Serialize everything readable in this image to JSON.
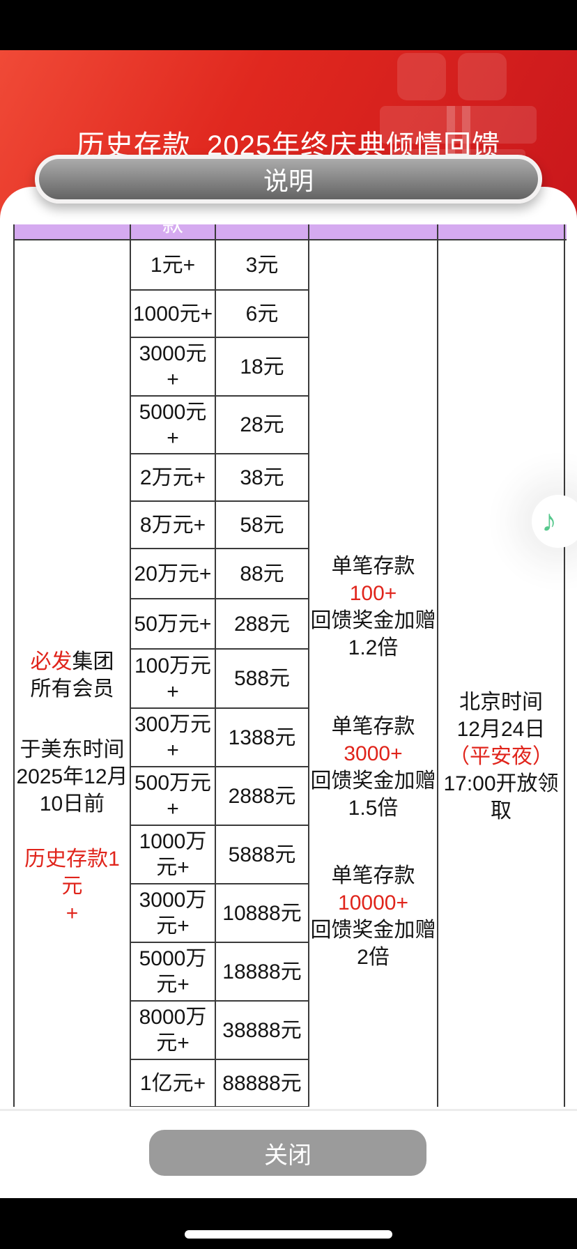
{
  "header": {
    "title": "历史存款_2025年终庆典倾情回馈",
    "explain_button": "说明"
  },
  "table": {
    "header_partial_label": "款",
    "eligibility": {
      "brand_red": "必发",
      "brand_black": "集团",
      "members_line": "所有会员",
      "time_line1": "于美东时间",
      "time_line2": "2025年12月",
      "time_line3": "10日前",
      "deposit_req_line1": "历史存款1元",
      "deposit_req_line2": "+"
    },
    "tiers": [
      {
        "deposit": "1元+",
        "bonus": "3元"
      },
      {
        "deposit": "1000元+",
        "bonus": "6元"
      },
      {
        "deposit": "3000元\n+",
        "bonus": "18元"
      },
      {
        "deposit": "5000元\n+",
        "bonus": "28元"
      },
      {
        "deposit": "2万元+",
        "bonus": "38元"
      },
      {
        "deposit": "8万元+",
        "bonus": "58元"
      },
      {
        "deposit": "20万元+",
        "bonus": "88元"
      },
      {
        "deposit": "50万元+",
        "bonus": "288元"
      },
      {
        "deposit": "100万元\n+",
        "bonus": "588元"
      },
      {
        "deposit": "300万元\n+",
        "bonus": "1388元"
      },
      {
        "deposit": "500万元\n+",
        "bonus": "2888元"
      },
      {
        "deposit": "1000万\n元+",
        "bonus": "5888元"
      },
      {
        "deposit": "3000万\n元+",
        "bonus": "10888元"
      },
      {
        "deposit": "5000万\n元+",
        "bonus": "18888元"
      },
      {
        "deposit": "8000万\n元+",
        "bonus": "38888元"
      },
      {
        "deposit": "1亿元+",
        "bonus": "88888元"
      }
    ],
    "multipliers": [
      {
        "line1": "单笔存款",
        "amount": "100+",
        "line3": "回馈奖金加赠",
        "factor": "1.2倍"
      },
      {
        "line1": "单笔存款",
        "amount": "3000+",
        "line3": "回馈奖金加赠",
        "factor": "1.5倍"
      },
      {
        "line1": "单笔存款",
        "amount": "10000+",
        "line3": "回馈奖金加赠",
        "factor": "2倍"
      }
    ],
    "claim_time": {
      "line1": "北京时间",
      "line2": "12月24日",
      "line3": "（平安夜）",
      "line4": "17:00开放领",
      "line5": "取"
    }
  },
  "footer": {
    "close_button": "关闭"
  },
  "floating": {
    "music_icon": "♪"
  },
  "colors": {
    "banner_red": "#e0281f",
    "accent_red": "#e0241b",
    "header_purple": "#d5aaf0",
    "note_green": "#57c88d",
    "button_gray": "#9b9b9b"
  }
}
